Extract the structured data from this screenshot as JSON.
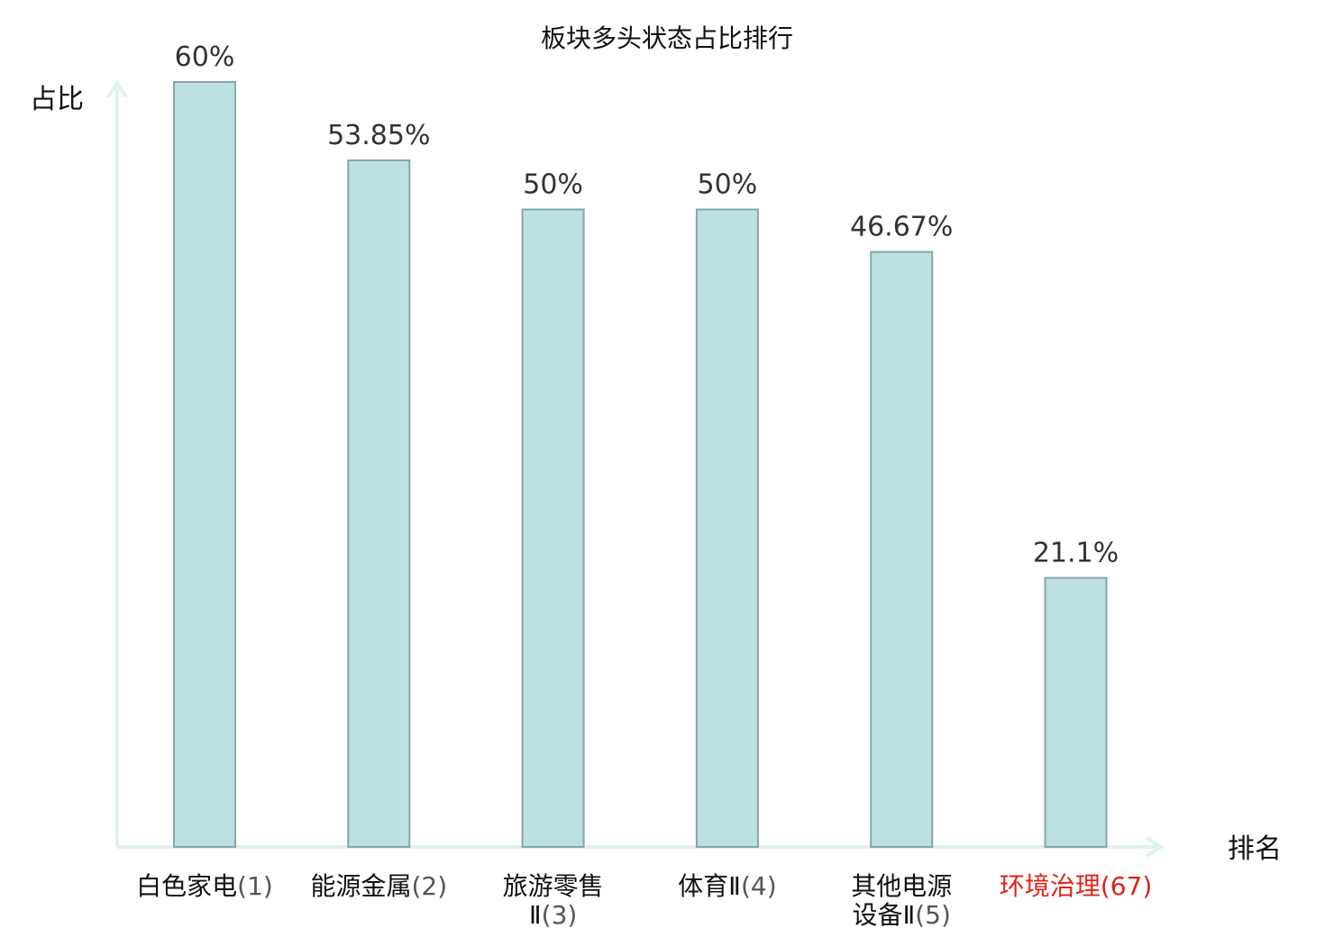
{
  "chart_data": {
    "type": "bar",
    "title": "板块多头状态占比排行",
    "ylabel": "占比",
    "xlabel": "排名",
    "ylim": [
      0,
      60
    ],
    "categories": [
      {
        "name_lines": [
          "白色家电"
        ],
        "rank": "(1)",
        "highlight": false
      },
      {
        "name_lines": [
          "能源金属"
        ],
        "rank": "(2)",
        "highlight": false
      },
      {
        "name_lines": [
          "旅游零售",
          "Ⅱ"
        ],
        "rank": "(3)",
        "highlight": false
      },
      {
        "name_lines": [
          "体育Ⅱ"
        ],
        "rank": "(4)",
        "highlight": false
      },
      {
        "name_lines": [
          "其他电源",
          "设备Ⅱ"
        ],
        "rank": "(5)",
        "highlight": false
      },
      {
        "name_lines": [
          "环境治理"
        ],
        "rank": "(67)",
        "highlight": true
      }
    ],
    "values": [
      60,
      53.85,
      50,
      50,
      46.67,
      21.1
    ],
    "value_labels": [
      "60%",
      "53.85%",
      "50%",
      "50%",
      "46.67%",
      "21.1%"
    ],
    "grid": false,
    "legend": "none",
    "colors": {
      "bar_fill": "#bde0e3",
      "bar_stroke": "#86a6aa",
      "axis": "#dff2ee",
      "highlight_text": "#e0241b"
    }
  }
}
